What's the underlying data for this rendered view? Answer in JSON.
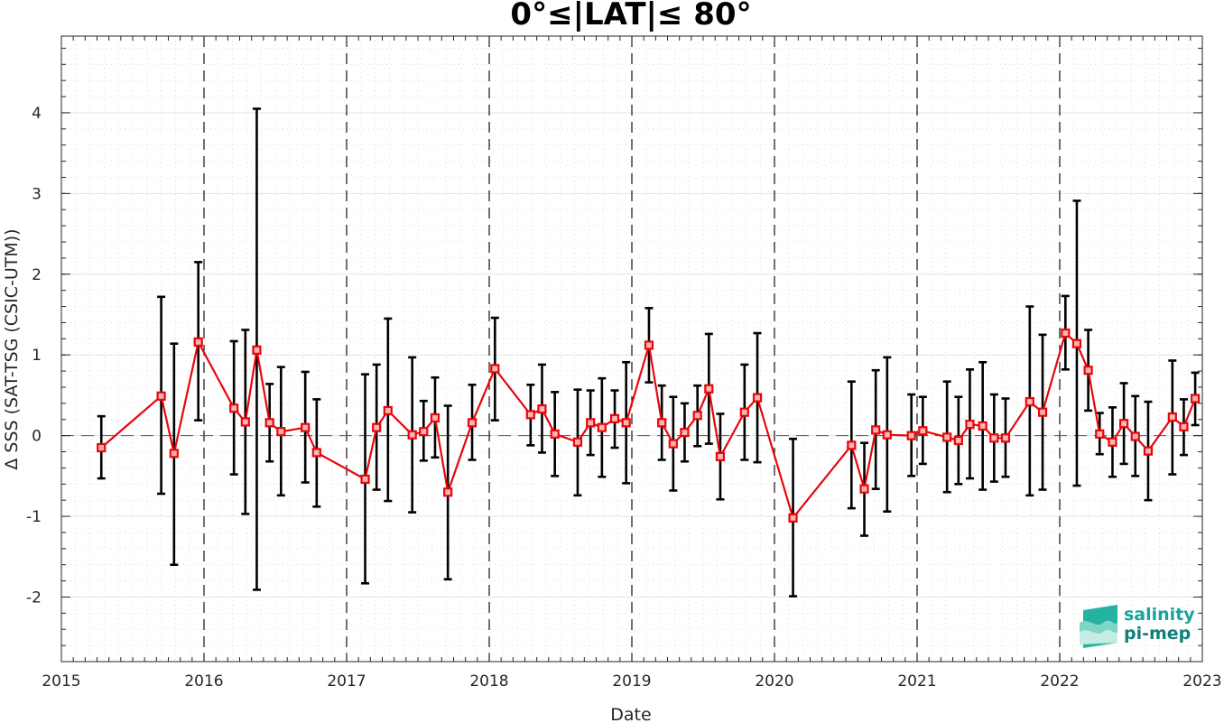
{
  "chart_data": {
    "type": "scatter",
    "title": "0°≤|LAT|≤ 80°",
    "xlabel": "Date",
    "ylabel": "Δ SSS (SAT-TSG (CSIC-UTM))",
    "xlim": [
      2015,
      2023
    ],
    "ylim": [
      -2.8,
      4.95
    ],
    "xticks": [
      "2015",
      "2016",
      "2017",
      "2018",
      "2019",
      "2020",
      "2021",
      "2022",
      "2023"
    ],
    "yticks": [
      "-2",
      "-1",
      "0",
      "1",
      "2",
      "3",
      "4"
    ],
    "grid": true,
    "series": [
      {
        "color": "#e8060a",
        "points": [
          {
            "x": 2015.28,
            "y": -0.15,
            "lo": -0.53,
            "hi": 0.24
          },
          {
            "x": 2015.7,
            "y": 0.49,
            "lo": -0.72,
            "hi": 1.72
          },
          {
            "x": 2015.79,
            "y": -0.22,
            "lo": -1.6,
            "hi": 1.14
          },
          {
            "x": 2015.96,
            "y": 1.16,
            "lo": 0.19,
            "hi": 2.15
          },
          {
            "x": 2016.21,
            "y": 0.34,
            "lo": -0.48,
            "hi": 1.17
          },
          {
            "x": 2016.29,
            "y": 0.17,
            "lo": -0.97,
            "hi": 1.31
          },
          {
            "x": 2016.37,
            "y": 1.06,
            "lo": -1.91,
            "hi": 4.05
          },
          {
            "x": 2016.46,
            "y": 0.16,
            "lo": -0.32,
            "hi": 0.64
          },
          {
            "x": 2016.54,
            "y": 0.05,
            "lo": -0.74,
            "hi": 0.85
          },
          {
            "x": 2016.71,
            "y": 0.1,
            "lo": -0.58,
            "hi": 0.79
          },
          {
            "x": 2016.79,
            "y": -0.21,
            "lo": -0.88,
            "hi": 0.45
          },
          {
            "x": 2017.13,
            "y": -0.54,
            "lo": -1.83,
            "hi": 0.76
          },
          {
            "x": 2017.21,
            "y": 0.1,
            "lo": -0.67,
            "hi": 0.88
          },
          {
            "x": 2017.29,
            "y": 0.31,
            "lo": -0.81,
            "hi": 1.45
          },
          {
            "x": 2017.46,
            "y": 0.01,
            "lo": -0.95,
            "hi": 0.97
          },
          {
            "x": 2017.54,
            "y": 0.05,
            "lo": -0.31,
            "hi": 0.43
          },
          {
            "x": 2017.62,
            "y": 0.22,
            "lo": -0.27,
            "hi": 0.72
          },
          {
            "x": 2017.71,
            "y": -0.7,
            "lo": -1.78,
            "hi": 0.37
          },
          {
            "x": 2017.88,
            "y": 0.16,
            "lo": -0.3,
            "hi": 0.63
          },
          {
            "x": 2018.04,
            "y": 0.83,
            "lo": 0.19,
            "hi": 1.46
          },
          {
            "x": 2018.29,
            "y": 0.26,
            "lo": -0.12,
            "hi": 0.63
          },
          {
            "x": 2018.37,
            "y": 0.33,
            "lo": -0.21,
            "hi": 0.88
          },
          {
            "x": 2018.46,
            "y": 0.02,
            "lo": -0.5,
            "hi": 0.54
          },
          {
            "x": 2018.62,
            "y": -0.08,
            "lo": -0.74,
            "hi": 0.57
          },
          {
            "x": 2018.71,
            "y": 0.16,
            "lo": -0.24,
            "hi": 0.56
          },
          {
            "x": 2018.79,
            "y": 0.1,
            "lo": -0.51,
            "hi": 0.71
          },
          {
            "x": 2018.88,
            "y": 0.21,
            "lo": -0.15,
            "hi": 0.56
          },
          {
            "x": 2018.96,
            "y": 0.16,
            "lo": -0.59,
            "hi": 0.91
          },
          {
            "x": 2019.12,
            "y": 1.12,
            "lo": 0.66,
            "hi": 1.58
          },
          {
            "x": 2019.21,
            "y": 0.16,
            "lo": -0.3,
            "hi": 0.62
          },
          {
            "x": 2019.29,
            "y": -0.1,
            "lo": -0.68,
            "hi": 0.48
          },
          {
            "x": 2019.37,
            "y": 0.04,
            "lo": -0.32,
            "hi": 0.4
          },
          {
            "x": 2019.46,
            "y": 0.25,
            "lo": -0.13,
            "hi": 0.62
          },
          {
            "x": 2019.54,
            "y": 0.58,
            "lo": -0.1,
            "hi": 1.26
          },
          {
            "x": 2019.62,
            "y": -0.26,
            "lo": -0.79,
            "hi": 0.27
          },
          {
            "x": 2019.79,
            "y": 0.29,
            "lo": -0.3,
            "hi": 0.88
          },
          {
            "x": 2019.88,
            "y": 0.47,
            "lo": -0.33,
            "hi": 1.27
          },
          {
            "x": 2020.13,
            "y": -1.02,
            "lo": -1.99,
            "hi": -0.04
          },
          {
            "x": 2020.54,
            "y": -0.12,
            "lo": -0.9,
            "hi": 0.67
          },
          {
            "x": 2020.63,
            "y": -0.66,
            "lo": -1.24,
            "hi": -0.09
          },
          {
            "x": 2020.71,
            "y": 0.07,
            "lo": -0.66,
            "hi": 0.81
          },
          {
            "x": 2020.79,
            "y": 0.01,
            "lo": -0.94,
            "hi": 0.97
          },
          {
            "x": 2020.96,
            "y": 0.0,
            "lo": -0.5,
            "hi": 0.51
          },
          {
            "x": 2021.04,
            "y": 0.06,
            "lo": -0.35,
            "hi": 0.48
          },
          {
            "x": 2021.21,
            "y": -0.02,
            "lo": -0.7,
            "hi": 0.67
          },
          {
            "x": 2021.29,
            "y": -0.06,
            "lo": -0.6,
            "hi": 0.48
          },
          {
            "x": 2021.37,
            "y": 0.14,
            "lo": -0.53,
            "hi": 0.82
          },
          {
            "x": 2021.46,
            "y": 0.12,
            "lo": -0.67,
            "hi": 0.91
          },
          {
            "x": 2021.54,
            "y": -0.03,
            "lo": -0.57,
            "hi": 0.51
          },
          {
            "x": 2021.62,
            "y": -0.03,
            "lo": -0.51,
            "hi": 0.46
          },
          {
            "x": 2021.79,
            "y": 0.42,
            "lo": -0.74,
            "hi": 1.6
          },
          {
            "x": 2021.88,
            "y": 0.29,
            "lo": -0.67,
            "hi": 1.25
          },
          {
            "x": 2022.04,
            "y": 1.27,
            "lo": 0.82,
            "hi": 1.73
          },
          {
            "x": 2022.12,
            "y": 1.14,
            "lo": -0.62,
            "hi": 2.91
          },
          {
            "x": 2022.2,
            "y": 0.81,
            "lo": 0.31,
            "hi": 1.31
          },
          {
            "x": 2022.28,
            "y": 0.02,
            "lo": -0.23,
            "hi": 0.28
          },
          {
            "x": 2022.37,
            "y": -0.08,
            "lo": -0.51,
            "hi": 0.35
          },
          {
            "x": 2022.45,
            "y": 0.15,
            "lo": -0.35,
            "hi": 0.65
          },
          {
            "x": 2022.53,
            "y": -0.01,
            "lo": -0.5,
            "hi": 0.49
          },
          {
            "x": 2022.62,
            "y": -0.19,
            "lo": -0.8,
            "hi": 0.42
          },
          {
            "x": 2022.79,
            "y": 0.23,
            "lo": -0.48,
            "hi": 0.93
          },
          {
            "x": 2022.87,
            "y": 0.11,
            "lo": -0.24,
            "hi": 0.45
          },
          {
            "x": 2022.95,
            "y": 0.46,
            "lo": 0.13,
            "hi": 0.78
          }
        ]
      }
    ]
  },
  "logo": {
    "line1": "salinity",
    "line2": "pi-mep"
  }
}
